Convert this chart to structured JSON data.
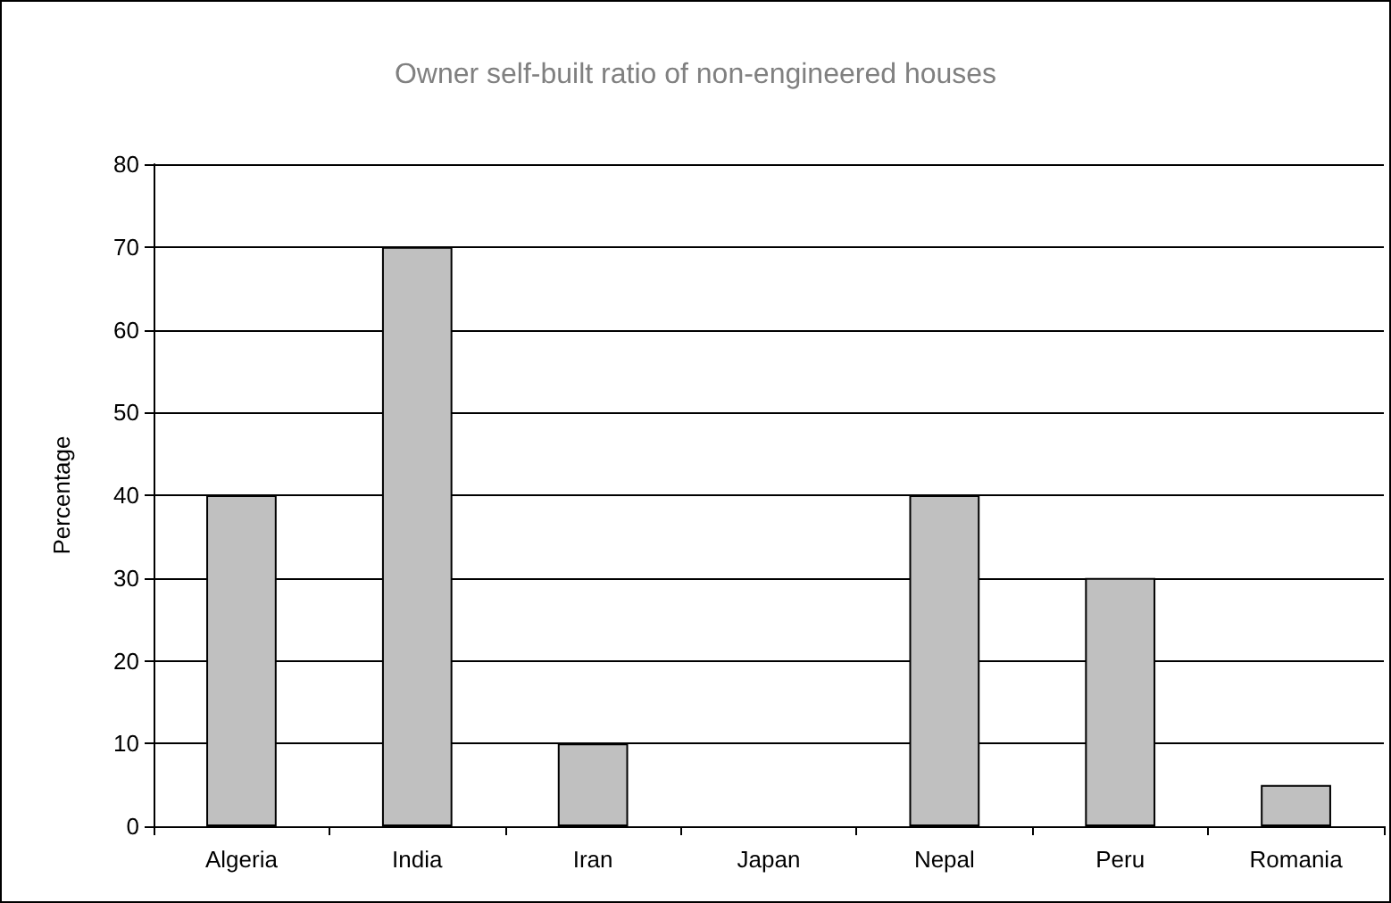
{
  "chart_data": {
    "type": "bar",
    "title": "Owner self-built ratio of non-engineered houses",
    "ylabel": "Percentage",
    "categories": [
      "Algeria",
      "India",
      "Iran",
      "Japan",
      "Nepal",
      "Peru",
      "Romania"
    ],
    "values": [
      40,
      70,
      10,
      0,
      40,
      30,
      5
    ],
    "color": "#c0c0c0",
    "ylim": [
      0,
      80
    ],
    "yticks": [
      0,
      10,
      20,
      30,
      40,
      50,
      60,
      70,
      80
    ],
    "grid": "y"
  }
}
